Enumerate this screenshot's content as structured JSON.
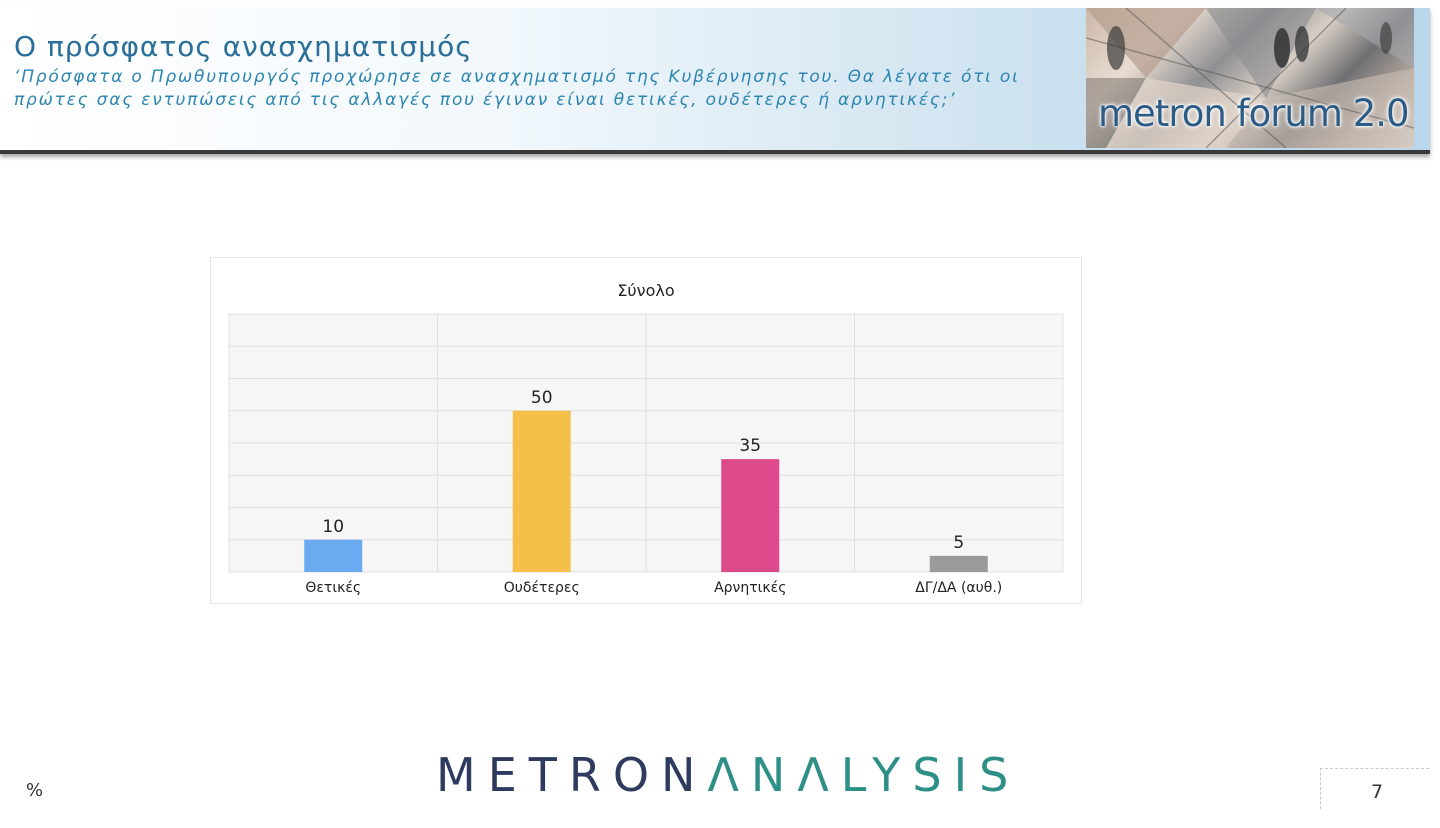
{
  "header": {
    "title": "Ο πρόσφατος ανασχηματισμός",
    "question": "‘Πρόσφατα ο Πρωθυπουργός προχώρησε σε ανασχηματισμό της Κυβέρνησης του. Θα λέγατε ότι οι πρώτες σας εντυπώσεις από τις αλλαγές που έγιναν είναι θετικές, ουδέτερες ή αρνητικές;’",
    "logo_text": "metron forum 2.0"
  },
  "chart_data": {
    "type": "bar",
    "title": "Σύνολο",
    "categories": [
      "Θετικές",
      "Ουδέτερες",
      "Αρνητικές",
      "ΔΓ/ΔΑ (αυθ.)"
    ],
    "values": [
      10,
      50,
      35,
      5
    ],
    "colors": [
      "#6aaaf0",
      "#f4c04a",
      "#dc4a8c",
      "#9a9a9a"
    ],
    "ylim": [
      0,
      80
    ],
    "grid": true,
    "xlabel": "",
    "ylabel": ""
  },
  "footer": {
    "unit": "%",
    "brand_part1": "METRON",
    "brand_part2": "ΛNΛLYSIS",
    "page_number": "7"
  }
}
